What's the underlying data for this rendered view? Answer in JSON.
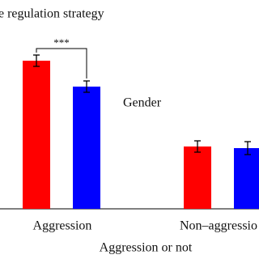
{
  "chart_data": {
    "type": "bar",
    "title": "e regulation strategy",
    "x_label": "Aggression or not",
    "legend_title": "Gender",
    "annotation": "***",
    "categories": [
      "Aggression",
      "Non–aggressio"
    ],
    "series": [
      {
        "color": "#ff0000",
        "values": [
          183,
          77
        ],
        "errors": [
          7,
          7
        ]
      },
      {
        "color": "#0000ff",
        "values": [
          151,
          75
        ],
        "errors": [
          7,
          8
        ]
      }
    ],
    "ylim": [
      0,
      200
    ]
  }
}
